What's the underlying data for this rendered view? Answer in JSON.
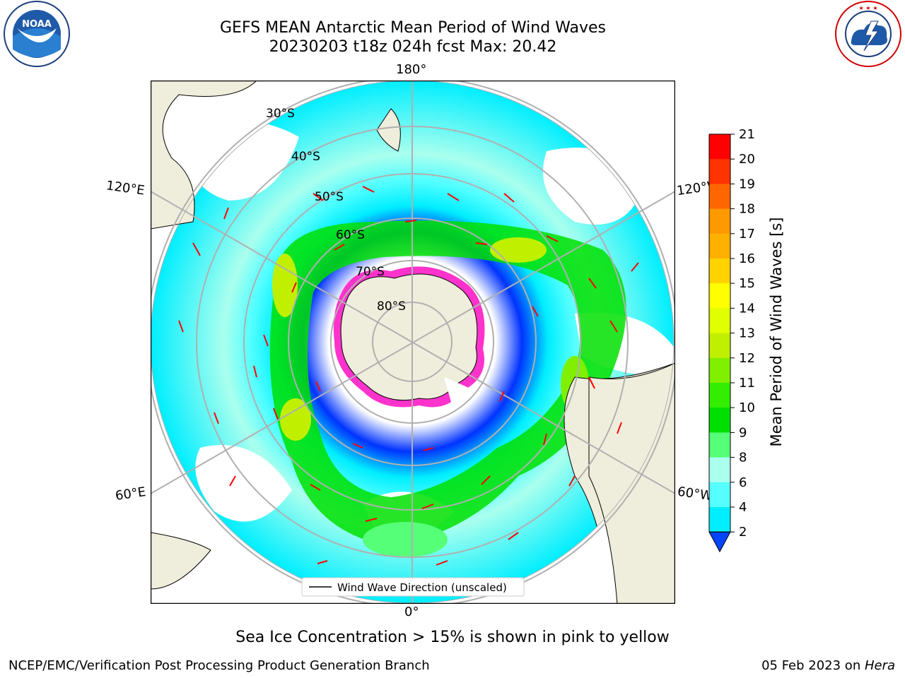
{
  "header": {
    "title_line1": "GEFS MEAN Antarctic Mean Period of Wind Waves",
    "title_line2": "20230203 t18z 024h fcst   Max: 20.42"
  },
  "logos": {
    "noaa_text": "NOAA",
    "noaa_ring_text": "NATIONAL OCEANIC AND ATMOSPHERIC ADMINISTRATION · U.S. DEPARTMENT OF COMMERCE",
    "nws_ring_text": "NATIONAL WEATHER SERVICE"
  },
  "map": {
    "projection": "south-polar-stereographic",
    "lon_labels": {
      "top": "180°",
      "bottom": "0°",
      "upper_left": "120°E",
      "upper_right": "120°W",
      "lower_left": "60°E",
      "lower_right": "60°W"
    },
    "lat_labels": [
      "30°S",
      "40°S",
      "50°S",
      "60°S",
      "70°S",
      "80°S"
    ],
    "legend_label": "Wind Wave Direction (unscaled)",
    "colors": {
      "land": "#efeedc",
      "ocean_low": "#ffffff",
      "grid": "#b0b0b0",
      "sea_ice": "#ff33cc",
      "arrows": "#ff0000"
    }
  },
  "colorbar": {
    "label": "Mean Period of Wind Waves [s]",
    "ticks": [
      "21",
      "20",
      "19",
      "18",
      "17",
      "16",
      "15",
      "14",
      "13",
      "12",
      "11",
      "10",
      "9",
      "8",
      "6",
      "4",
      "2"
    ],
    "colors": [
      "#ff0000",
      "#ff3300",
      "#ff6600",
      "#ff9900",
      "#ffb000",
      "#ffd200",
      "#ffff00",
      "#e0ff00",
      "#c0f000",
      "#80f000",
      "#33ee00",
      "#00e000",
      "#55ff77",
      "#aaffee",
      "#55ffff",
      "#00eeff",
      "#0099ff",
      "#0044ff"
    ],
    "extend": "min"
  },
  "footer": {
    "note": "Sea Ice Concentration > 15% is shown in pink to yellow",
    "left": "NCEP/EMC/Verification Post Processing Product Generation Branch",
    "date": "05 Feb 2023 on ",
    "host": "Hera"
  }
}
